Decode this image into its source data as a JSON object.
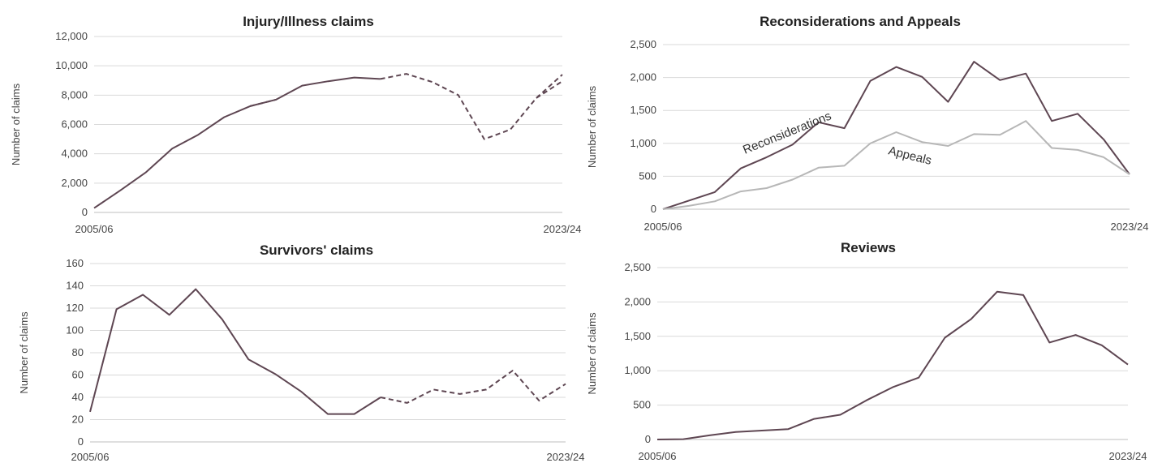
{
  "chart_data": [
    {
      "type": "line",
      "title": "Injury/Illness claims",
      "xlabel": "",
      "ylabel": "Number of claims",
      "x_tick_labels": [
        "2005/06",
        "2023/24"
      ],
      "x": [
        "2005/06",
        "2006/07",
        "2007/08",
        "2008/09",
        "2009/10",
        "2010/11",
        "2011/12",
        "2012/13",
        "2013/14",
        "2014/15",
        "2015/16",
        "2016/17",
        "2017/18",
        "2018/19",
        "2019/20",
        "2020/21",
        "2021/22",
        "2022/23",
        "2023/24"
      ],
      "ylim": [
        0,
        12000
      ],
      "yticks": [
        "0",
        "2,000",
        "4,000",
        "6,000",
        "8,000",
        "10,000",
        "12,000"
      ],
      "grid": true,
      "series": [
        {
          "color": "#5e4652",
          "style": "solid",
          "values": [
            300,
            1500,
            2750,
            4350,
            5300,
            6500,
            7250,
            7700,
            8650,
            8950,
            9200,
            9100,
            null,
            null,
            null,
            null,
            null,
            null,
            null
          ]
        },
        {
          "color": "#5e4652",
          "style": "dashed",
          "values": [
            null,
            null,
            null,
            null,
            null,
            null,
            7250,
            7700,
            null,
            null,
            null,
            9100,
            9450,
            8900,
            8000,
            5000,
            5650,
            7800,
            9400
          ]
        },
        {
          "color": "#5e4652",
          "style": "dashed",
          "values": [
            null,
            null,
            null,
            null,
            null,
            null,
            null,
            null,
            null,
            null,
            null,
            null,
            null,
            null,
            null,
            null,
            null,
            7800,
            8950
          ]
        }
      ]
    },
    {
      "type": "line",
      "title": "Reconsiderations and Appeals",
      "xlabel": "",
      "ylabel": "Number of claims",
      "x_tick_labels": [
        "2005/06",
        "2023/24"
      ],
      "x": [
        "2005/06",
        "2006/07",
        "2007/08",
        "2008/09",
        "2009/10",
        "2010/11",
        "2011/12",
        "2012/13",
        "2013/14",
        "2014/15",
        "2015/16",
        "2016/17",
        "2017/18",
        "2018/19",
        "2019/20",
        "2020/21",
        "2021/22",
        "2022/23",
        "2023/24"
      ],
      "ylim": [
        0,
        2500
      ],
      "yticks": [
        "0",
        "500",
        "1,000",
        "1,500",
        "2,000",
        "2,500"
      ],
      "grid": true,
      "series": [
        {
          "label": "Reconsiderations",
          "color": "#5e4652",
          "style": "solid",
          "values": [
            0,
            130,
            260,
            620,
            790,
            980,
            1320,
            1230,
            1950,
            2160,
            2010,
            1630,
            2240,
            1960,
            2060,
            1340,
            1450,
            1060,
            530
          ]
        },
        {
          "label": "Appeals",
          "color": "#b7b7b7",
          "style": "solid",
          "values": [
            0,
            50,
            120,
            270,
            320,
            450,
            630,
            660,
            1000,
            1170,
            1020,
            960,
            1140,
            1130,
            1340,
            930,
            900,
            790,
            530
          ]
        }
      ]
    },
    {
      "type": "line",
      "title": "Survivors' claims",
      "xlabel": "",
      "ylabel": "Number of claims",
      "x_tick_labels": [
        "2005/06",
        "2023/24"
      ],
      "x": [
        "2005/06",
        "2006/07",
        "2007/08",
        "2008/09",
        "2009/10",
        "2010/11",
        "2011/12",
        "2012/13",
        "2013/14",
        "2014/15",
        "2015/16",
        "2016/17",
        "2017/18",
        "2018/19",
        "2019/20",
        "2020/21",
        "2021/22",
        "2022/23",
        "2023/24"
      ],
      "ylim": [
        0,
        160
      ],
      "yticks": [
        "0",
        "20",
        "40",
        "60",
        "80",
        "100",
        "120",
        "140",
        "160"
      ],
      "grid": true,
      "series": [
        {
          "color": "#5e4652",
          "style": "solid",
          "values": [
            27,
            119,
            132,
            114,
            137,
            110,
            74,
            61,
            45,
            25,
            25,
            40,
            null,
            null,
            null,
            null,
            null,
            null,
            null
          ]
        },
        {
          "color": "#5e4652",
          "style": "dashed",
          "values": [
            null,
            null,
            null,
            null,
            null,
            null,
            null,
            null,
            null,
            null,
            null,
            40,
            35,
            47,
            43,
            47,
            64,
            37,
            52
          ]
        }
      ]
    },
    {
      "type": "line",
      "title": "Reviews",
      "xlabel": "",
      "ylabel": "Number of claims",
      "x_tick_labels": [
        "2005/06",
        "2023/24"
      ],
      "x": [
        "2005/06",
        "2006/07",
        "2007/08",
        "2008/09",
        "2009/10",
        "2010/11",
        "2011/12",
        "2012/13",
        "2013/14",
        "2014/15",
        "2015/16",
        "2016/17",
        "2017/18",
        "2018/19",
        "2019/20",
        "2020/21",
        "2021/22",
        "2022/23",
        "2023/24"
      ],
      "ylim": [
        0,
        2500
      ],
      "yticks": [
        "0",
        "500",
        "1,000",
        "1,500",
        "2,000",
        "2,500"
      ],
      "grid": true,
      "series": [
        {
          "color": "#5e4652",
          "style": "solid",
          "values": [
            0,
            5,
            60,
            110,
            130,
            150,
            300,
            360,
            570,
            760,
            900,
            1480,
            1750,
            2150,
            2100,
            1410,
            1520,
            1370,
            1090
          ]
        }
      ]
    }
  ]
}
